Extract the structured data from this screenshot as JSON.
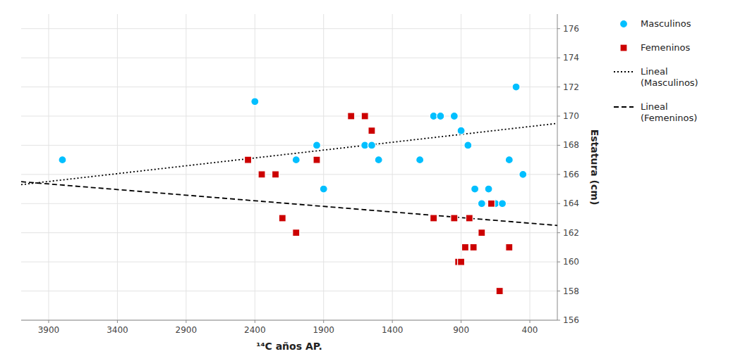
{
  "chart_data": {
    "type": "scatter",
    "x_label": "¹⁴C años AP.",
    "y_label": "Estatura (cm)",
    "xlim": [
      4100,
      200
    ],
    "ylim": [
      156,
      177
    ],
    "xticks": [
      3900,
      3400,
      2900,
      2400,
      1900,
      1400,
      900,
      400
    ],
    "yticks": [
      156,
      158,
      160,
      162,
      164,
      166,
      168,
      170,
      172,
      174,
      176
    ],
    "grid": true,
    "legend": "right",
    "series": [
      {
        "name": "Masculinos",
        "type": "scatter",
        "marker": "circle",
        "color": "#00BFFF",
        "x": [
          3800,
          2400,
          2100,
          1950,
          1900,
          1600,
          1550,
          1500,
          1200,
          1100,
          1050,
          950,
          900,
          850,
          800,
          750,
          700,
          650,
          600,
          550,
          500,
          450
        ],
        "values": [
          167,
          171,
          167,
          168,
          165,
          168,
          168,
          167,
          167,
          170,
          170,
          170,
          169,
          168,
          165,
          164,
          165,
          164,
          164,
          167,
          172,
          166
        ]
      },
      {
        "name": "Femeninos",
        "type": "scatter",
        "marker": "square",
        "color": "#CC0000",
        "x": [
          2450,
          2350,
          2250,
          2200,
          2100,
          1950,
          1700,
          1600,
          1550,
          1100,
          950,
          920,
          900,
          870,
          840,
          810,
          750,
          680,
          620,
          550
        ],
        "values": [
          167,
          166,
          166,
          163,
          162,
          167,
          170,
          170,
          169,
          163,
          163,
          160,
          160,
          161,
          163,
          161,
          162,
          164,
          158,
          161
        ]
      },
      {
        "name": "Lineal\n(Masculinos)",
        "type": "line",
        "line_style": "dotted",
        "color": "#000000",
        "x": [
          4100,
          200
        ],
        "values": [
          165.3,
          169.5
        ]
      },
      {
        "name": "Lineal\n(Femeninos)",
        "type": "line",
        "line_style": "dashed",
        "color": "#000000",
        "x": [
          4100,
          200
        ],
        "values": [
          165.5,
          162.5
        ]
      }
    ]
  }
}
